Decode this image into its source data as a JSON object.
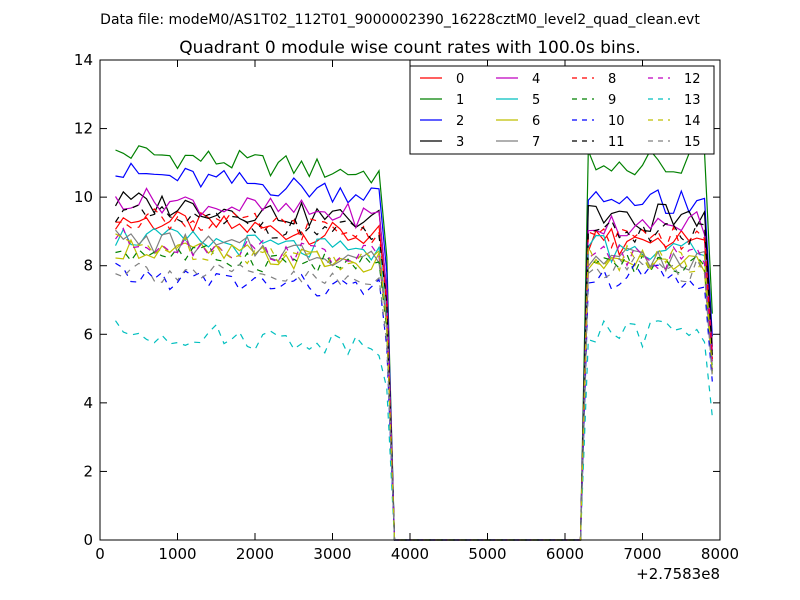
{
  "chart_data": {
    "type": "line",
    "suptitle": "Data file: modeM0/AS1T02_112T01_9000002390_16228cztM0_level2_quad_clean.evt",
    "title": "Quadrant 0 module wise count rates with 100.0s bins.",
    "xlabel": "",
    "ylabel": "",
    "x_offset_label": "+2.7583e8",
    "xlim": [
      0,
      8000
    ],
    "ylim": [
      0,
      14
    ],
    "x_ticks": [
      0,
      1000,
      2000,
      3000,
      4000,
      5000,
      6000,
      7000,
      8000
    ],
    "y_ticks": [
      0,
      2,
      4,
      6,
      8,
      10,
      12,
      14
    ],
    "x_tick_labels": [
      "0",
      "1000",
      "2000",
      "3000",
      "4000",
      "5000",
      "6000",
      "7000",
      "8000"
    ],
    "y_tick_labels": [
      "0",
      "2",
      "4",
      "6",
      "8",
      "10",
      "12",
      "14"
    ],
    "legend_position": "top-right",
    "legend_columns": 4,
    "segments": {
      "seg1_x": [
        200,
        3600
      ],
      "drop1_x": [
        3700,
        3800
      ],
      "zero_x": [
        3800,
        6200
      ],
      "seg2_x": [
        6300,
        7800
      ],
      "drop2_x": [
        7900
      ]
    },
    "series": [
      {
        "name": "0",
        "color": "#ff0000",
        "dash": "solid",
        "level1": 9.1,
        "level2": 8.7
      },
      {
        "name": "1",
        "color": "#008000",
        "dash": "solid",
        "level1": 11.0,
        "level2": 11.0
      },
      {
        "name": "2",
        "color": "#0000ff",
        "dash": "solid",
        "level1": 10.4,
        "level2": 9.9
      },
      {
        "name": "3",
        "color": "#000000",
        "dash": "solid",
        "level1": 9.6,
        "level2": 9.4
      },
      {
        "name": "4",
        "color": "#bf00bf",
        "dash": "solid",
        "level1": 9.7,
        "level2": 9.2
      },
      {
        "name": "5",
        "color": "#00bfbf",
        "dash": "solid",
        "level1": 8.6,
        "level2": 8.5
      },
      {
        "name": "6",
        "color": "#bfbf00",
        "dash": "solid",
        "level1": 8.3,
        "level2": 8.1
      },
      {
        "name": "7",
        "color": "#808080",
        "dash": "solid",
        "level1": 8.5,
        "level2": 8.2
      },
      {
        "name": "8",
        "color": "#ff0000",
        "dash": "dashed",
        "level1": 9.2,
        "level2": 8.8
      },
      {
        "name": "9",
        "color": "#008000",
        "dash": "dashed",
        "level1": 8.2,
        "level2": 8.0
      },
      {
        "name": "10",
        "color": "#0000ff",
        "dash": "dashed",
        "level1": 7.5,
        "level2": 7.7
      },
      {
        "name": "11",
        "color": "#000000",
        "dash": "dashed",
        "level1": 9.2,
        "level2": 9.0
      },
      {
        "name": "12",
        "color": "#bf00bf",
        "dash": "dashed",
        "level1": 8.5,
        "level2": 8.3
      },
      {
        "name": "13",
        "color": "#00bfbf",
        "dash": "dashed",
        "level1": 5.9,
        "level2": 6.0
      },
      {
        "name": "14",
        "color": "#bfbf00",
        "dash": "dashed",
        "level1": 8.4,
        "level2": 8.2
      },
      {
        "name": "15",
        "color": "#808080",
        "dash": "dashed",
        "level1": 7.7,
        "level2": 7.9
      }
    ]
  }
}
